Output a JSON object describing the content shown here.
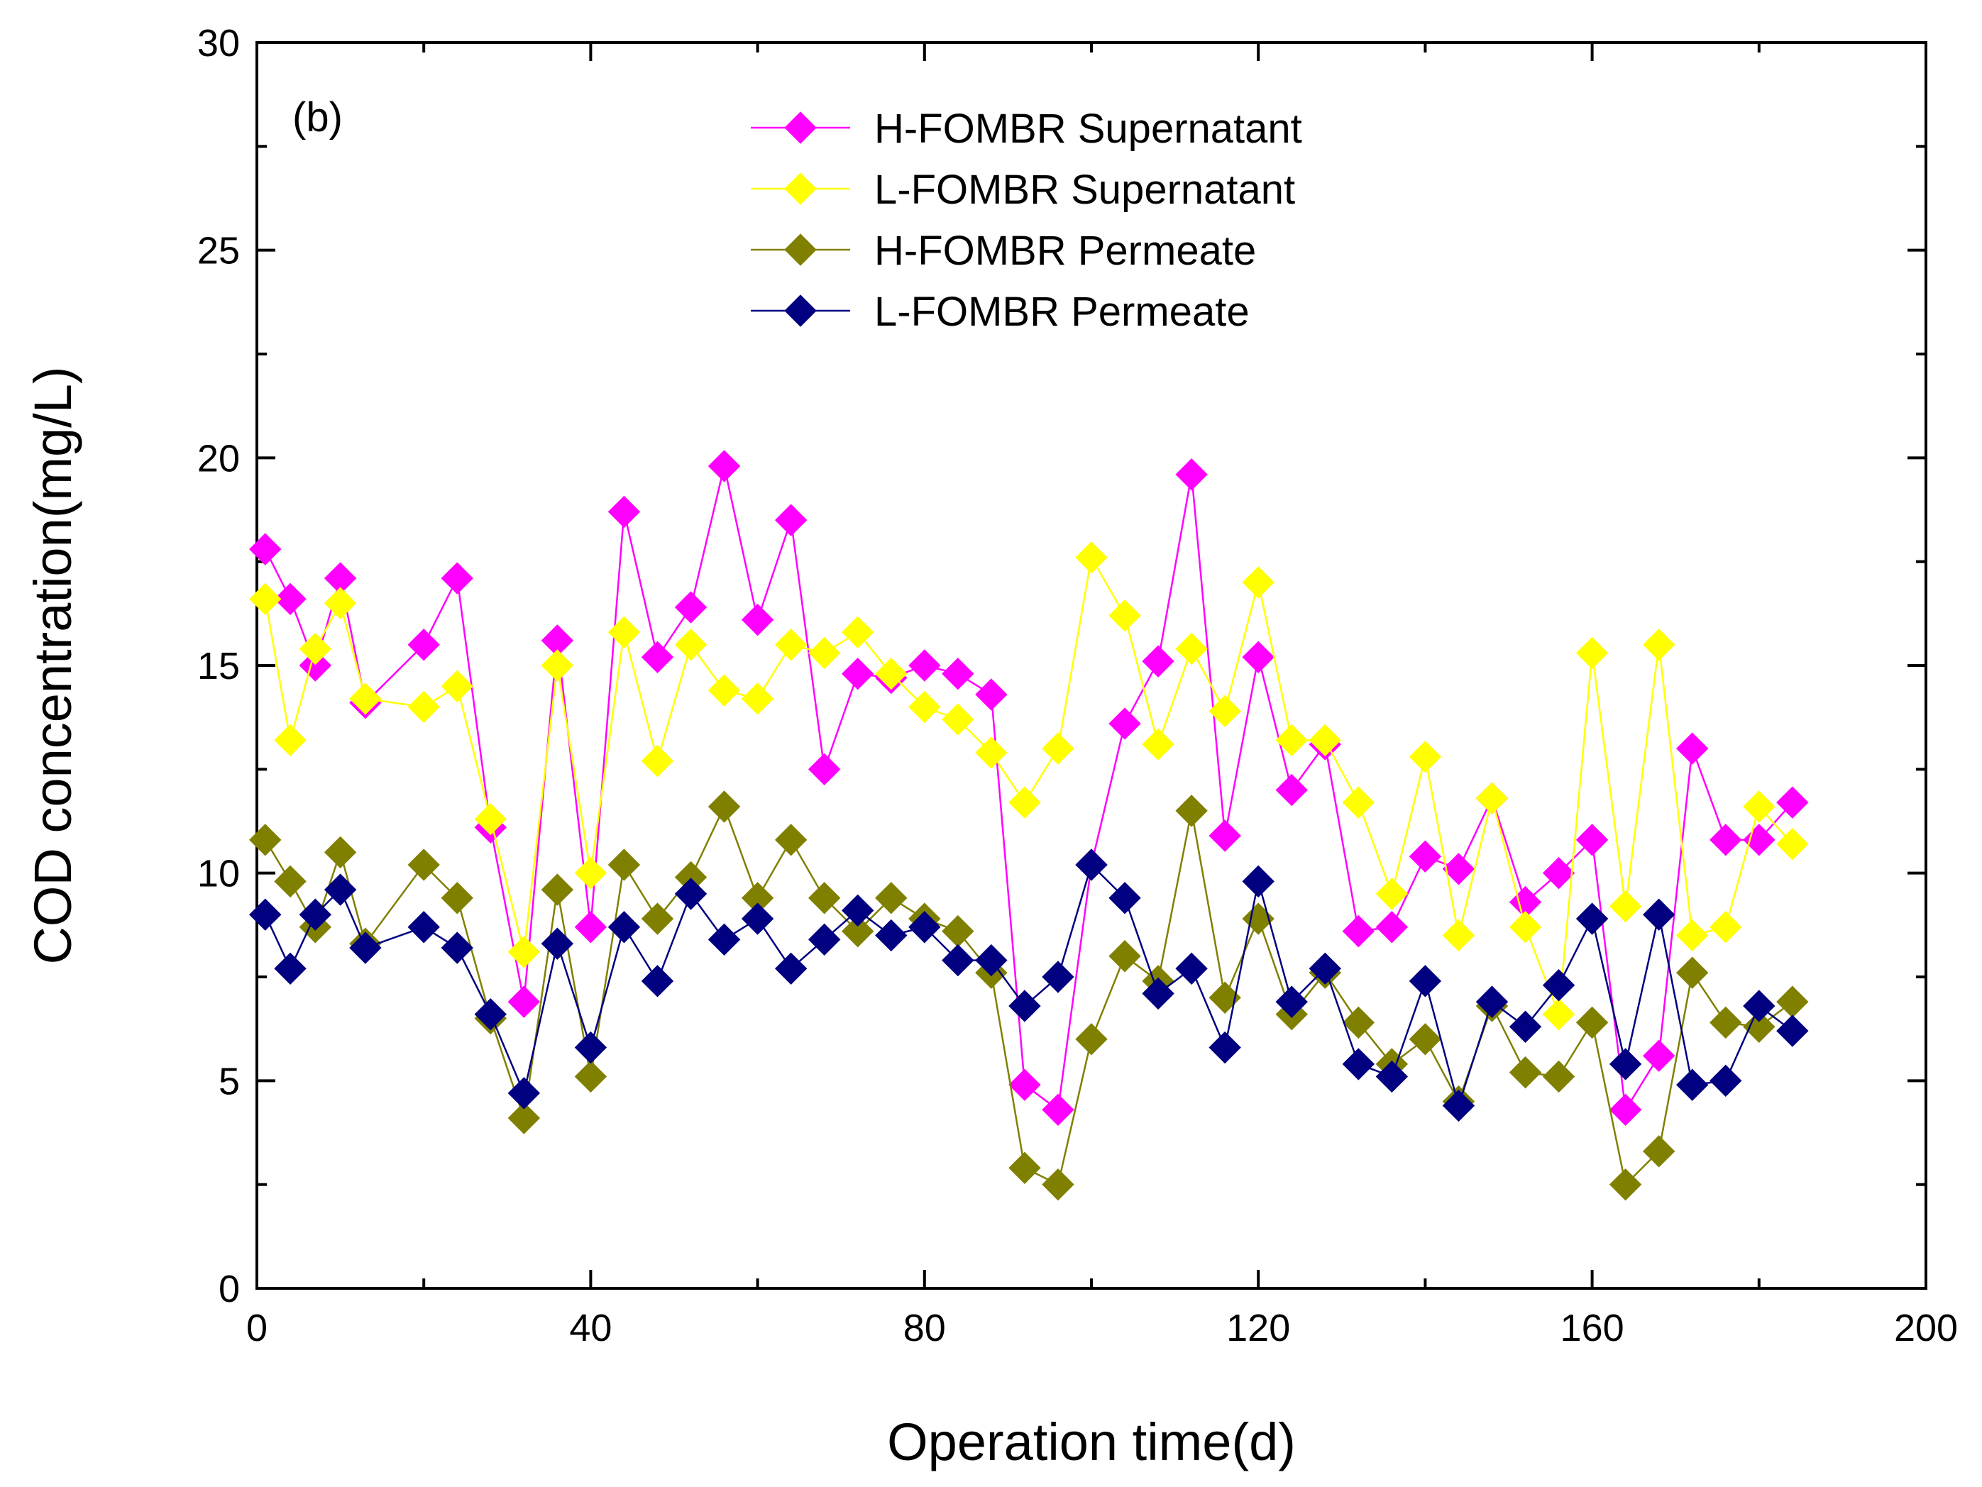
{
  "chart_data": {
    "type": "line",
    "panel_label": "(b)",
    "xlabel": "Operation time(d)",
    "ylabel": "COD concentration(mg/L)",
    "xlim": [
      0,
      200
    ],
    "ylim": [
      0,
      30
    ],
    "x_ticks": [
      0,
      40,
      80,
      120,
      160,
      200
    ],
    "y_ticks": [
      0,
      5,
      10,
      15,
      20,
      25,
      30
    ],
    "x_tick_labels": [
      "0",
      "40",
      "80",
      "120",
      "160",
      "200"
    ],
    "y_tick_labels": [
      "0",
      "5",
      "10",
      "15",
      "20",
      "25",
      "30"
    ],
    "grid": false,
    "legend_position": "top-center",
    "series": [
      {
        "name": "H-FOMBR Supernatant",
        "color": "#ff00ff",
        "marker": "diamond",
        "x": [
          1,
          4,
          7,
          10,
          13,
          20,
          24,
          28,
          32,
          36,
          40,
          44,
          48,
          52,
          56,
          60,
          64,
          68,
          72,
          76,
          80,
          84,
          88,
          92,
          96,
          100,
          104,
          108,
          112,
          116,
          120,
          124,
          128,
          132,
          136,
          140,
          144,
          148,
          152,
          156,
          160,
          164,
          168,
          172,
          176,
          180,
          184
        ],
        "values": [
          17.8,
          16.6,
          15.0,
          17.1,
          14.1,
          15.5,
          17.1,
          11.1,
          6.9,
          15.6,
          8.7,
          18.7,
          15.2,
          16.4,
          19.8,
          16.1,
          18.5,
          12.5,
          14.8,
          14.7,
          15.0,
          14.8,
          14.3,
          4.9,
          4.3,
          10.2,
          13.6,
          15.1,
          19.6,
          10.9,
          15.2,
          12.0,
          13.1,
          8.6,
          8.7,
          10.4,
          10.1,
          11.8,
          9.3,
          10.0,
          10.8,
          4.3,
          5.6,
          13.0,
          10.8,
          10.8,
          11.7
        ]
      },
      {
        "name": "L-FOMBR Supernatant",
        "color": "#ffff00",
        "marker": "diamond",
        "x": [
          1,
          4,
          7,
          10,
          13,
          20,
          24,
          28,
          32,
          36,
          40,
          44,
          48,
          52,
          56,
          60,
          64,
          68,
          72,
          76,
          80,
          84,
          88,
          92,
          96,
          100,
          104,
          108,
          112,
          116,
          120,
          124,
          128,
          132,
          136,
          140,
          144,
          148,
          152,
          156,
          160,
          164,
          168,
          172,
          176,
          180,
          184
        ],
        "values": [
          16.6,
          13.2,
          15.4,
          16.5,
          14.2,
          14.0,
          14.5,
          11.3,
          8.1,
          15.0,
          10.0,
          15.8,
          12.7,
          15.5,
          14.4,
          14.2,
          15.5,
          15.3,
          15.8,
          14.8,
          14.0,
          13.7,
          12.9,
          11.7,
          13.0,
          17.6,
          16.2,
          13.1,
          15.4,
          13.9,
          17.0,
          13.2,
          13.2,
          11.7,
          9.5,
          12.8,
          8.5,
          11.8,
          8.7,
          6.6,
          15.3,
          9.2,
          15.5,
          8.5,
          8.7,
          11.6,
          10.7
        ]
      },
      {
        "name": "H-FOMBR Permeate",
        "color": "#808000",
        "marker": "diamond",
        "x": [
          1,
          4,
          7,
          10,
          13,
          20,
          24,
          28,
          32,
          36,
          40,
          44,
          48,
          52,
          56,
          60,
          64,
          68,
          72,
          76,
          80,
          84,
          88,
          92,
          96,
          100,
          104,
          108,
          112,
          116,
          120,
          124,
          128,
          132,
          136,
          140,
          144,
          148,
          152,
          156,
          160,
          164,
          168,
          172,
          176,
          180,
          184
        ],
        "values": [
          10.8,
          9.8,
          8.7,
          10.5,
          8.3,
          10.2,
          9.4,
          6.5,
          4.1,
          9.6,
          5.1,
          10.2,
          8.9,
          9.9,
          11.6,
          9.4,
          10.8,
          9.4,
          8.6,
          9.4,
          8.9,
          8.6,
          7.6,
          2.9,
          2.5,
          6.0,
          8.0,
          7.4,
          11.5,
          7.0,
          8.9,
          6.6,
          7.6,
          6.4,
          5.4,
          6.0,
          4.5,
          6.8,
          5.2,
          5.1,
          6.4,
          2.5,
          3.3,
          7.6,
          6.4,
          6.3,
          6.9
        ]
      },
      {
        "name": "L-FOMBR Permeate",
        "color": "#000080",
        "marker": "diamond",
        "x": [
          1,
          4,
          7,
          10,
          13,
          20,
          24,
          28,
          32,
          36,
          40,
          44,
          48,
          52,
          56,
          60,
          64,
          68,
          72,
          76,
          80,
          84,
          88,
          92,
          96,
          100,
          104,
          108,
          112,
          116,
          120,
          124,
          128,
          132,
          136,
          140,
          144,
          148,
          152,
          156,
          160,
          164,
          168,
          172,
          176,
          180,
          184
        ],
        "values": [
          9.0,
          7.7,
          9.0,
          9.6,
          8.2,
          8.7,
          8.2,
          6.6,
          4.7,
          8.3,
          5.8,
          8.7,
          7.4,
          9.5,
          8.4,
          8.9,
          7.7,
          8.4,
          9.1,
          8.5,
          8.7,
          7.9,
          7.9,
          6.8,
          7.5,
          10.2,
          9.4,
          7.1,
          7.7,
          5.8,
          9.8,
          6.9,
          7.7,
          5.4,
          5.1,
          7.4,
          4.4,
          6.9,
          6.3,
          7.3,
          8.9,
          5.4,
          9.0,
          4.9,
          5.0,
          6.8,
          6.2
        ]
      }
    ]
  }
}
